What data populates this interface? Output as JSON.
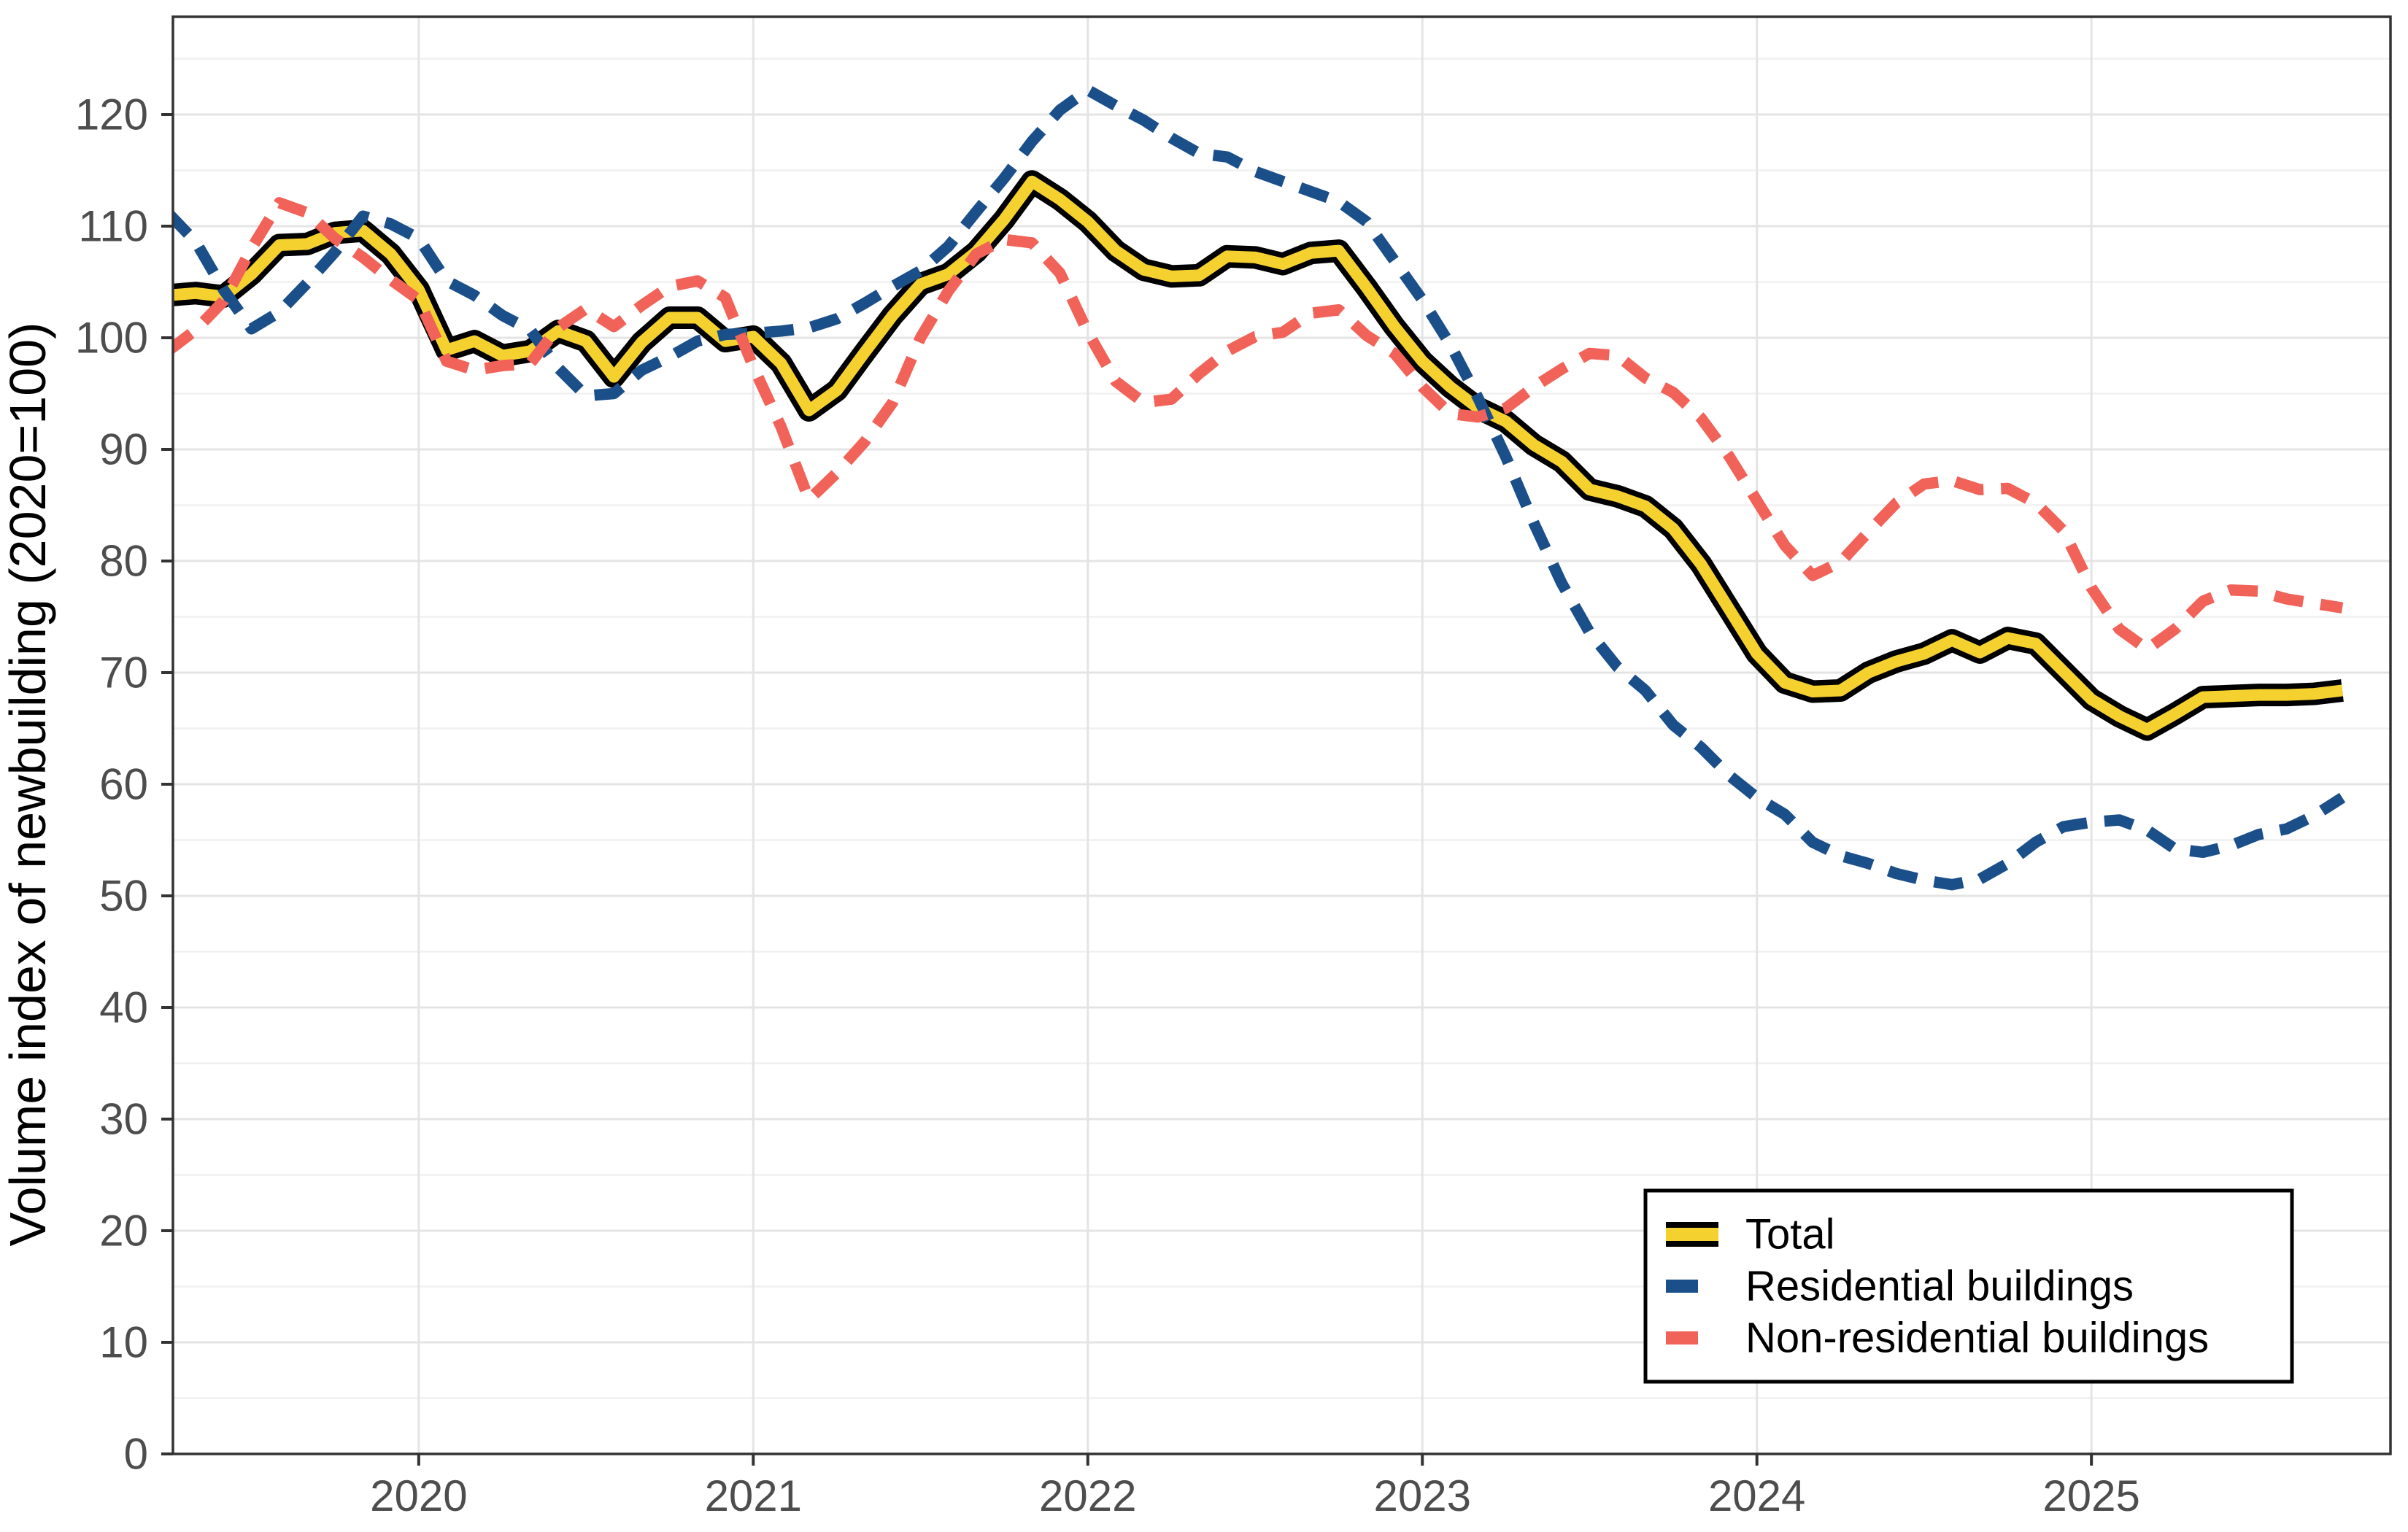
{
  "figure": {
    "background": "#ffffff"
  },
  "panel": {
    "background": "#ffffff",
    "border_color": "#333333",
    "tick_color": "#333333"
  },
  "grid": {
    "major_color": "#e4e4e4",
    "minor_color": "#f0f0f0"
  },
  "axes": {
    "y": {
      "title": "Volume index of newbuilding (2020=100)",
      "ticks": [
        0,
        10,
        20,
        30,
        40,
        50,
        60,
        70,
        80,
        90,
        100,
        110,
        120
      ],
      "minor_start": 5,
      "minor_end": 125,
      "minor_step": 10,
      "label_color": "#4d4d4d",
      "title_color": "#000000"
    },
    "x": {
      "tick_labels": [
        "2020",
        "2021",
        "2022",
        "2023",
        "2024",
        "2025"
      ],
      "tick_month_index": [
        9,
        21,
        33,
        45,
        57,
        69
      ],
      "label_color": "#4d4d4d"
    }
  },
  "chart_data": {
    "type": "line",
    "title": "",
    "xlabel": "",
    "ylabel": "Volume index of newbuilding (2020=100)",
    "ylim": [
      0,
      128.8
    ],
    "x_start": "2019-04",
    "x_end": "2025-10",
    "x_interval": "monthly",
    "grid": "major and minor horizontal, yearly vertical",
    "legend_position": "bottom-right inside panel",
    "series": [
      {
        "name": "Total",
        "style": "solid-band",
        "color": "#f5d130",
        "outline_color": "#000000",
        "values": [
          103.8,
          104.0,
          103.7,
          105.7,
          108.3,
          108.4,
          109.4,
          109.6,
          107.5,
          104.3,
          98.9,
          99.7,
          98.4,
          98.8,
          100.6,
          99.7,
          96.5,
          99.6,
          101.8,
          101.8,
          99.7,
          100.1,
          97.7,
          93.5,
          95.3,
          98.7,
          102.0,
          104.8,
          105.7,
          107.7,
          110.6,
          114.0,
          112.4,
          110.4,
          107.8,
          106.1,
          105.5,
          105.6,
          107.3,
          107.2,
          106.6,
          107.6,
          107.8,
          104.5,
          101.0,
          97.9,
          95.6,
          93.7,
          92.5,
          90.4,
          88.9,
          86.4,
          85.8,
          84.9,
          82.9,
          79.7,
          75.7,
          71.7,
          69.1,
          68.3,
          68.4,
          70.0,
          71.0,
          71.7,
          72.9,
          71.8,
          73.1,
          72.6,
          70.1,
          67.6,
          66.1,
          64.9,
          66.3,
          67.8,
          67.9,
          68.0,
          68.0,
          68.1,
          68.4
        ]
      },
      {
        "name": "Residential buildings",
        "style": "dashed",
        "color": "#1b4f8a",
        "values": [
          111.2,
          108.6,
          104.3,
          100.8,
          102.3,
          104.9,
          107.7,
          110.9,
          110.2,
          108.9,
          105.1,
          103.8,
          102.0,
          100.7,
          97.3,
          94.8,
          95.0,
          97.1,
          98.3,
          99.7,
          100.3,
          100.4,
          100.6,
          100.9,
          101.7,
          103.1,
          104.6,
          106.0,
          108.2,
          111.3,
          114.3,
          117.6,
          120.4,
          122.2,
          120.8,
          119.5,
          117.9,
          116.5,
          116.2,
          114.9,
          114.0,
          113.1,
          112.2,
          110.4,
          106.9,
          103.4,
          99.4,
          94.6,
          89.3,
          83.4,
          78.0,
          73.6,
          70.5,
          68.4,
          65.3,
          63.3,
          60.8,
          58.8,
          57.3,
          54.8,
          53.6,
          52.9,
          52.0,
          51.4,
          51.0,
          51.5,
          52.9,
          54.8,
          56.2,
          56.6,
          56.8,
          55.9,
          54.2,
          53.9,
          54.5,
          55.5,
          56.0,
          57.2,
          58.8
        ]
      },
      {
        "name": "Non-residential buildings",
        "style": "dashed",
        "color": "#f16259",
        "values": [
          98.8,
          100.7,
          103.3,
          108.0,
          112.1,
          111.2,
          108.9,
          107.2,
          105.2,
          103.4,
          97.9,
          97.1,
          97.5,
          97.7,
          100.9,
          102.6,
          101.0,
          102.9,
          104.6,
          105.1,
          103.6,
          97.4,
          92.0,
          85.5,
          87.9,
          90.7,
          94.2,
          100.0,
          104.2,
          107.5,
          108.8,
          108.5,
          105.8,
          100.5,
          96.1,
          94.2,
          94.5,
          96.8,
          98.8,
          100.1,
          100.5,
          102.2,
          102.5,
          100.2,
          98.6,
          95.6,
          93.2,
          92.9,
          93.7,
          95.6,
          97.2,
          98.6,
          98.4,
          96.4,
          95.1,
          92.8,
          89.4,
          85.4,
          81.4,
          78.7,
          79.9,
          82.6,
          85.2,
          86.9,
          87.2,
          86.4,
          86.5,
          85.2,
          82.7,
          77.6,
          73.9,
          72.1,
          73.9,
          76.4,
          77.4,
          77.3,
          76.6,
          76.2,
          75.8
        ]
      }
    ],
    "legend": {
      "labels": [
        "Total",
        "Residential buildings",
        "Non-residential buildings"
      ],
      "background": "#ffffff",
      "border_color": "#000000"
    }
  }
}
